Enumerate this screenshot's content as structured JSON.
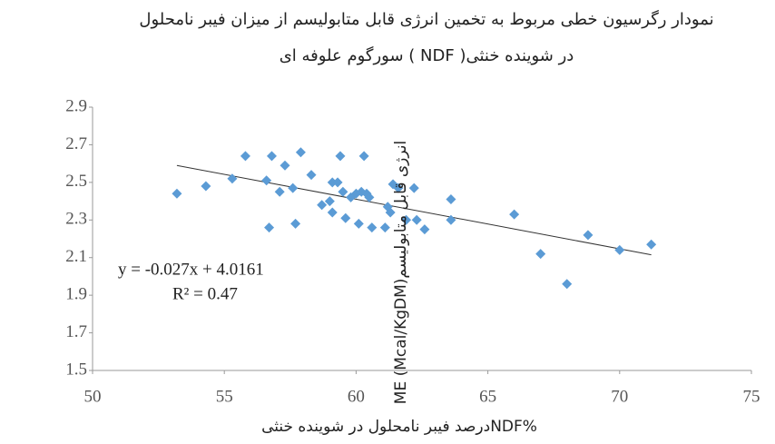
{
  "chart_data": {
    "type": "scatter",
    "title": [
      "نمودار رگرسیون خطی مربوط به تخمین انرژی قابل متابولیسم از میزان فیبر نامحلول",
      "در شوینده خنثی( NDF ) سورگوم علوفه ای"
    ],
    "x_label": "درصد فیبر نامحلول در شوینده خنثیNDF%",
    "y_label": "ME (Mcal/KgDM)انرژی قابل متابولیسم",
    "annotations": [
      "y = -0.027x + 4.0161",
      "R² = 0.47"
    ],
    "color": "#5b9bd5",
    "trendline": true,
    "x": [
      53.2,
      54.3,
      55.3,
      55.8,
      56.6,
      56.7,
      56.8,
      57.1,
      57.3,
      57.6,
      57.7,
      57.9,
      58.3,
      58.7,
      59.0,
      59.1,
      59.1,
      59.3,
      59.4,
      59.5,
      59.6,
      59.8,
      60.0,
      60.1,
      60.2,
      60.3,
      60.4,
      60.5,
      60.6,
      61.1,
      61.2,
      61.3,
      61.4,
      61.6,
      61.9,
      62.2,
      62.3,
      62.6,
      63.6,
      63.6,
      66.0,
      67.0,
      68.0,
      68.8,
      70.0,
      71.2
    ],
    "values": [
      2.44,
      2.48,
      2.52,
      2.64,
      2.51,
      2.26,
      2.64,
      2.45,
      2.59,
      2.47,
      2.28,
      2.66,
      2.54,
      2.38,
      2.4,
      2.5,
      2.34,
      2.5,
      2.64,
      2.45,
      2.31,
      2.42,
      2.44,
      2.28,
      2.45,
      2.64,
      2.44,
      2.42,
      2.26,
      2.26,
      2.37,
      2.34,
      2.49,
      2.47,
      2.3,
      2.47,
      2.3,
      2.25,
      2.41,
      2.3,
      2.33,
      2.12,
      1.96,
      2.22,
      2.14,
      2.17
    ],
    "xlim": [
      50,
      75
    ],
    "xticks": [
      50,
      55,
      60,
      65,
      70,
      75
    ],
    "ylim": [
      1.5,
      2.9
    ],
    "yticks": [
      1.5,
      1.7,
      1.9,
      2.1,
      2.3,
      2.5,
      2.7,
      2.9
    ]
  }
}
